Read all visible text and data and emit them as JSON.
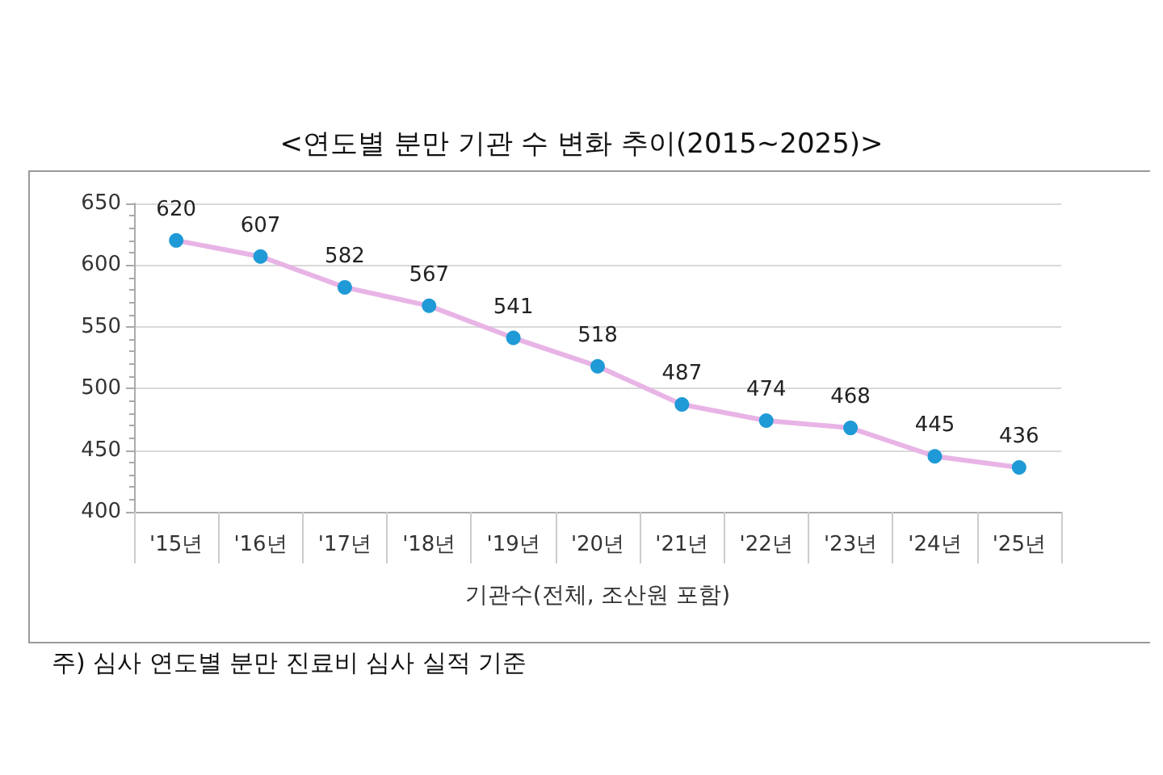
{
  "chart_data": {
    "type": "line",
    "title": "<연도별 분만 기관 수 변화 추이(2015~2025)>",
    "categories": [
      "'15년",
      "'16년",
      "'17년",
      "'18년",
      "'19년",
      "'20년",
      "'21년",
      "'22년",
      "'23년",
      "'24년",
      "'25년"
    ],
    "series": [
      {
        "color": "#e8b4e6",
        "values": [
          620,
          607,
          582,
          567,
          541,
          518,
          487,
          474,
          468,
          445,
          436
        ]
      }
    ],
    "xlabel": "기관수(전체, 조산원 포함)",
    "ylim": [
      400,
      650
    ],
    "yticks": [
      400,
      450,
      500,
      550,
      600,
      650
    ],
    "grid": "y",
    "marker": "circle",
    "line_style": "solid",
    "data_labels": true,
    "annotations": [
      "주) 심사 연도별 분만 진료비 심사 실적 기준"
    ]
  }
}
